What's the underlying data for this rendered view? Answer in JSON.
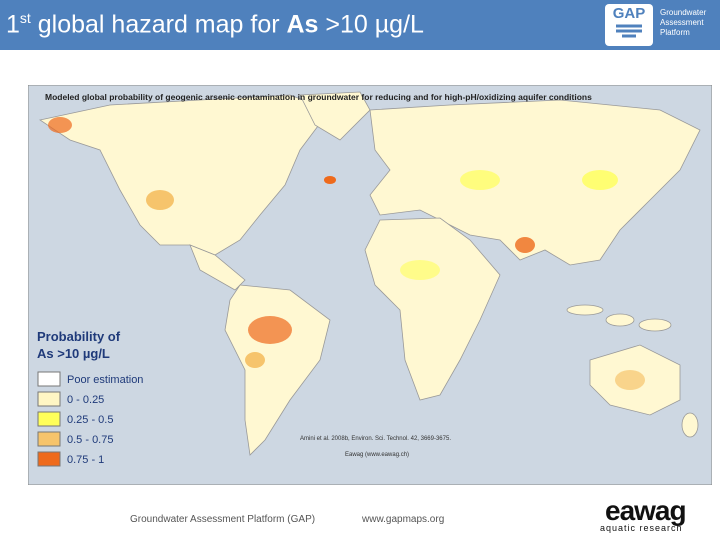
{
  "header": {
    "title_parts": [
      "1",
      "st",
      " global hazard map for ",
      "As",
      " >10 µg/L"
    ],
    "logo": {
      "mark": "GAP",
      "text": [
        "Groundwater",
        "Assessment",
        "Platform"
      ]
    }
  },
  "map": {
    "title": "Modeled global probability of geogenic arsenic contamination in groundwater for reducing and for high-pH/oxidizing aquifer conditions",
    "legend": {
      "title": [
        "Probability of",
        "As >10 µg/L"
      ],
      "items": [
        {
          "label": "Poor estimation",
          "color": "#ffffff"
        },
        {
          "label": "0 - 0.25",
          "color": "#fff6c4"
        },
        {
          "label": "0.25 - 0.5",
          "color": "#ffff5a"
        },
        {
          "label": "0.5 - 0.75",
          "color": "#f6c46c"
        },
        {
          "label": "0.75 - 1",
          "color": "#ee6a1c"
        }
      ]
    },
    "citation": [
      "Amini et al. 2008b, Environ. Sci. Technol. 42, 3669-3675.",
      "Eawag (www.eawag.ch)"
    ]
  },
  "footer": {
    "platform": "Groundwater Assessment Platform (GAP)",
    "url": "www.gapmaps.org",
    "brand": "eawag",
    "tagline": "aquatic research"
  }
}
